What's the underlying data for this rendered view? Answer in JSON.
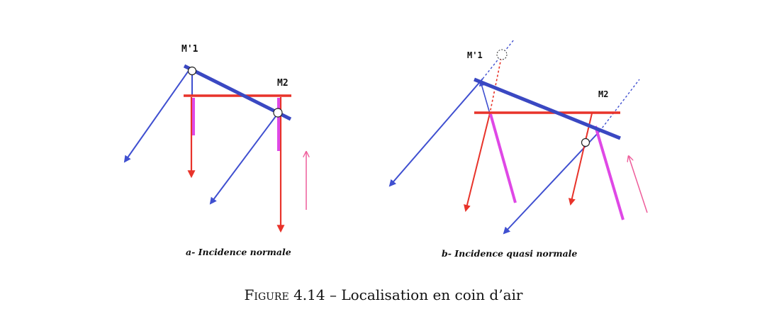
{
  "panels": [
    {
      "id": "a",
      "labels": {
        "m1": "M'1",
        "m2": "M2"
      },
      "subtitle": "a- Incidence normale"
    },
    {
      "id": "b",
      "labels": {
        "m1": "M'1",
        "m2": "M2"
      },
      "subtitle": "b- Incidence quasi normale"
    }
  ],
  "caption": {
    "figure_word": "Figure",
    "number": "4.14",
    "separator": "–",
    "text": "Localisation en coin d’air"
  },
  "colors": {
    "mirror": "#3a48c2",
    "ray_blue": "#3f4fd0",
    "ray_red": "#e8332a",
    "ray_magenta": "#df48e6",
    "arrow_pink": "#ee5c9a",
    "dashed_red": "#e8332a",
    "dashed_blue": "#3f4fd0"
  }
}
